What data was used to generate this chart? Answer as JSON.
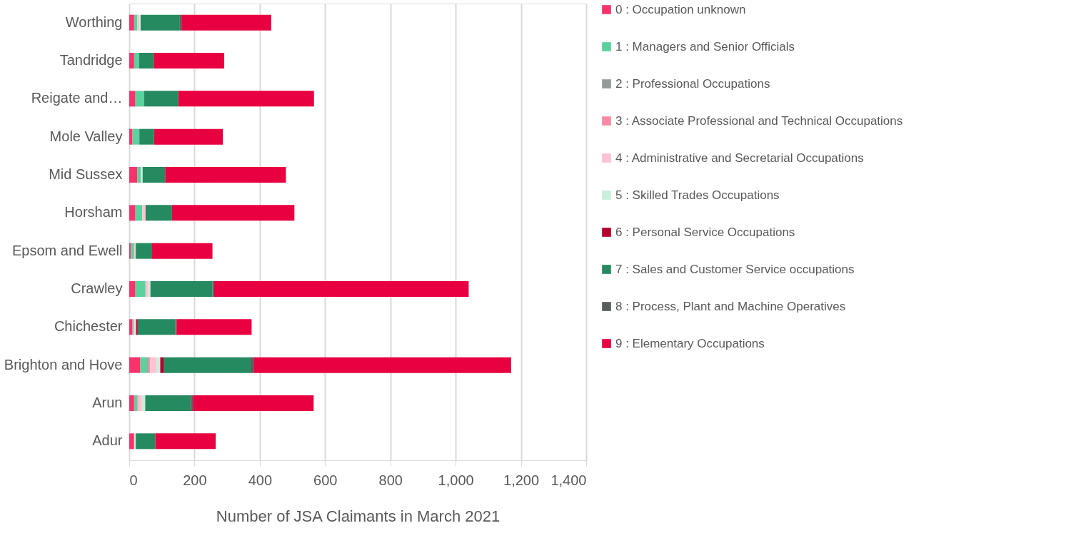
{
  "chart_data": {
    "type": "bar",
    "orientation": "horizontal",
    "stacked": true,
    "xlabel": "Number of JSA Claimants in March 2021",
    "categories": [
      "Worthing",
      "Tandridge",
      "Reigate and…",
      "Mole Valley",
      "Mid Sussex",
      "Horsham",
      "Epsom and Ewell",
      "Crawley",
      "Chichester",
      "Brighton and Hove",
      "Arun",
      "Adur"
    ],
    "series": [
      {
        "name": "0 : Occupation unknown",
        "color": "#f7336b",
        "values": [
          15,
          15,
          19,
          10,
          25,
          19,
          5,
          19,
          10,
          34,
          15,
          15
        ]
      },
      {
        "name": "1 : Managers and Senior Officials",
        "color": "#5bd19d",
        "values": [
          10,
          15,
          27,
          21,
          10,
          21,
          10,
          31,
          3,
          21,
          10,
          null
        ]
      },
      {
        "name": "2 : Professional Occupations",
        "color": "#959a9a",
        "values": [
          null,
          null,
          null,
          null,
          null,
          null,
          null,
          null,
          null,
          5,
          null,
          null
        ]
      },
      {
        "name": "3 : Associate Professional and Technical Occupations",
        "color": "#f98aa3",
        "values": [
          null,
          null,
          null,
          null,
          null,
          null,
          null,
          null,
          null,
          4,
          3,
          null
        ]
      },
      {
        "name": "4 : Administrative and Secretarial Occupations",
        "color": "#fec3d2",
        "values": [
          6,
          null,
          null,
          null,
          null,
          10,
          5,
          10,
          4,
          20,
          11,
          null
        ]
      },
      {
        "name": "5 : Skilled Trades Occupations",
        "color": "#c8efdc",
        "values": [
          4,
          null,
          null,
          null,
          6,
          null,
          null,
          5,
          4,
          11,
          10,
          5
        ]
      },
      {
        "name": "6 : Personal Service Occupations",
        "color": "#b5002e",
        "values": [
          null,
          null,
          null,
          null,
          null,
          null,
          null,
          null,
          5,
          10,
          null,
          null
        ]
      },
      {
        "name": "7 : Sales and Customer Service occupations",
        "color": "#268a60",
        "values": [
          120,
          45,
          104,
          45,
          69,
          81,
          50,
          190,
          115,
          267,
          140,
          60
        ]
      },
      {
        "name": "8 : Process, Plant and Machine Operatives",
        "color": "#575e5e",
        "values": [
          5,
          null,
          null,
          null,
          null,
          null,
          null,
          5,
          4,
          9,
          6,
          null
        ]
      },
      {
        "name": "9 : Elementary Occupations",
        "color": "#e90041",
        "values": [
          275,
          216,
          416,
          211,
          370,
          375,
          185,
          780,
          230,
          789,
          370,
          185
        ]
      }
    ],
    "xlim": [
      0,
      1400
    ],
    "xticks": [
      0,
      200,
      400,
      600,
      800,
      {
        "value": 1000,
        "label": "1,000"
      },
      {
        "value": 1200,
        "label": "1,200"
      },
      {
        "value": 1400,
        "label": "1,400"
      }
    ],
    "grid": "x",
    "legend": "right"
  }
}
